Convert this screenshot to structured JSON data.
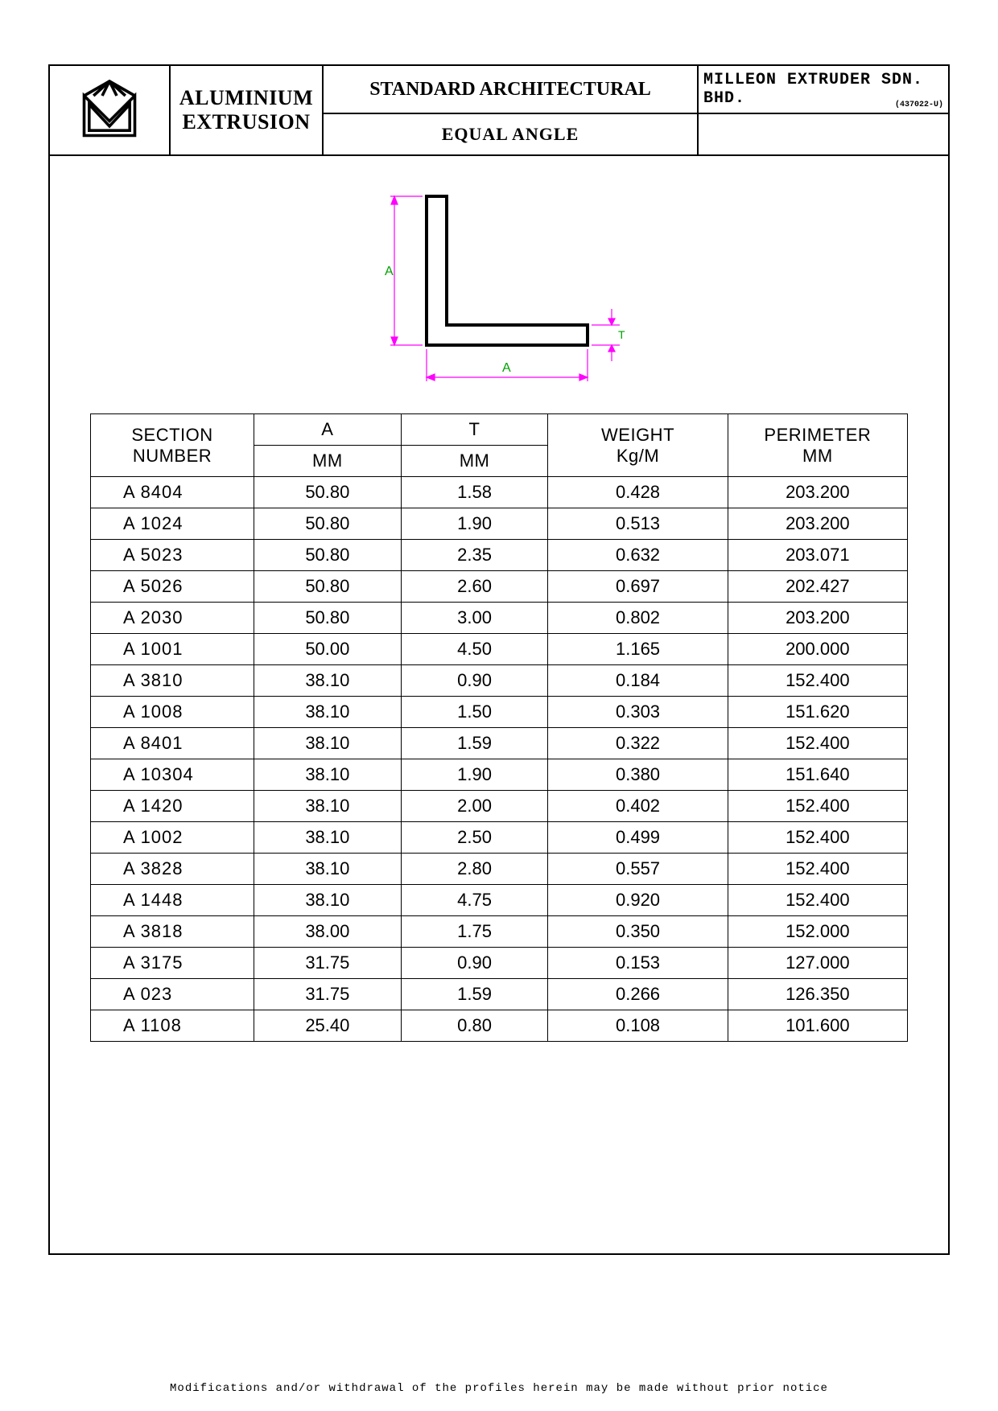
{
  "header": {
    "left_label": "ALUMINIUM EXTRUSION",
    "top_center": "STANDARD ARCHITECTURAL",
    "bottom_center": "EQUAL ANGLE",
    "company": "MILLEON EXTRUDER SDN. BHD.",
    "reg_no": "(437022-U)"
  },
  "diagram": {
    "profile_stroke": "#000000",
    "profile_stroke_width": 4,
    "dim_color_a": "#ff00ff",
    "dim_color_t": "#00a000",
    "label_a_v": "A",
    "label_a_h": "A",
    "label_t": "T"
  },
  "table": {
    "columns": {
      "section": {
        "line1": "SECTION",
        "line2": "NUMBER"
      },
      "a": {
        "line1": "A",
        "line2": "MM"
      },
      "t": {
        "line1": "T",
        "line2": "MM"
      },
      "weight": {
        "line1": "WEIGHT",
        "line2": "Kg/M"
      },
      "perimeter": {
        "line1": "PERIMETER",
        "line2": "MM"
      }
    },
    "rows": [
      {
        "section": "A  8404",
        "a": "50.80",
        "t": "1.58",
        "weight": "0.428",
        "perimeter": "203.200"
      },
      {
        "section": "A  1024",
        "a": "50.80",
        "t": "1.90",
        "weight": "0.513",
        "perimeter": "203.200"
      },
      {
        "section": "A  5023",
        "a": "50.80",
        "t": "2.35",
        "weight": "0.632",
        "perimeter": "203.071"
      },
      {
        "section": "A  5026",
        "a": "50.80",
        "t": "2.60",
        "weight": "0.697",
        "perimeter": "202.427"
      },
      {
        "section": "A  2030",
        "a": "50.80",
        "t": "3.00",
        "weight": "0.802",
        "perimeter": "203.200"
      },
      {
        "section": "A  1001",
        "a": "50.00",
        "t": "4.50",
        "weight": "1.165",
        "perimeter": "200.000"
      },
      {
        "section": "A  3810",
        "a": "38.10",
        "t": "0.90",
        "weight": "0.184",
        "perimeter": "152.400"
      },
      {
        "section": "A  1008",
        "a": "38.10",
        "t": "1.50",
        "weight": "0.303",
        "perimeter": "151.620"
      },
      {
        "section": "A  8401",
        "a": "38.10",
        "t": "1.59",
        "weight": "0.322",
        "perimeter": "152.400"
      },
      {
        "section": "A  10304",
        "a": "38.10",
        "t": "1.90",
        "weight": "0.380",
        "perimeter": "151.640"
      },
      {
        "section": "A  1420",
        "a": "38.10",
        "t": "2.00",
        "weight": "0.402",
        "perimeter": "152.400"
      },
      {
        "section": "A  1002",
        "a": "38.10",
        "t": "2.50",
        "weight": "0.499",
        "perimeter": "152.400"
      },
      {
        "section": "A  3828",
        "a": "38.10",
        "t": "2.80",
        "weight": "0.557",
        "perimeter": "152.400"
      },
      {
        "section": "A  1448",
        "a": "38.10",
        "t": "4.75",
        "weight": "0.920",
        "perimeter": "152.400"
      },
      {
        "section": "A  3818",
        "a": "38.00",
        "t": "1.75",
        "weight": "0.350",
        "perimeter": "152.000"
      },
      {
        "section": "A  3175",
        "a": "31.75",
        "t": "0.90",
        "weight": "0.153",
        "perimeter": "127.000"
      },
      {
        "section": "A  023",
        "a": "31.75",
        "t": "1.59",
        "weight": "0.266",
        "perimeter": "126.350"
      },
      {
        "section": "A  1108",
        "a": "25.40",
        "t": "0.80",
        "weight": "0.108",
        "perimeter": "101.600"
      }
    ]
  },
  "footer_note": "Modifications and/or withdrawal of the profiles herein may be made without prior notice"
}
